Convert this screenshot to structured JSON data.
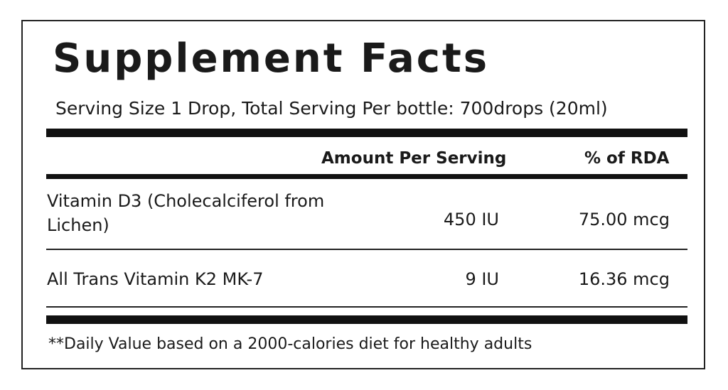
{
  "header": {
    "title": "Supplement Facts",
    "serving": "Serving Size 1 Drop, Total Serving Per bottle: 700drops (20ml)"
  },
  "table": {
    "columns": [
      "",
      "Amount Per Serving",
      "% of RDA"
    ],
    "rows": [
      [
        "Vitamin D3 (Cholecalciferol from Lichen)",
        "450 IU",
        "75.00 mcg"
      ],
      [
        "All Trans Vitamin K2 MK-7",
        "9 IU",
        "16.36 mcg"
      ]
    ]
  },
  "footnote": "**Daily Value based on a 2000-calories diet for healthy adults"
}
